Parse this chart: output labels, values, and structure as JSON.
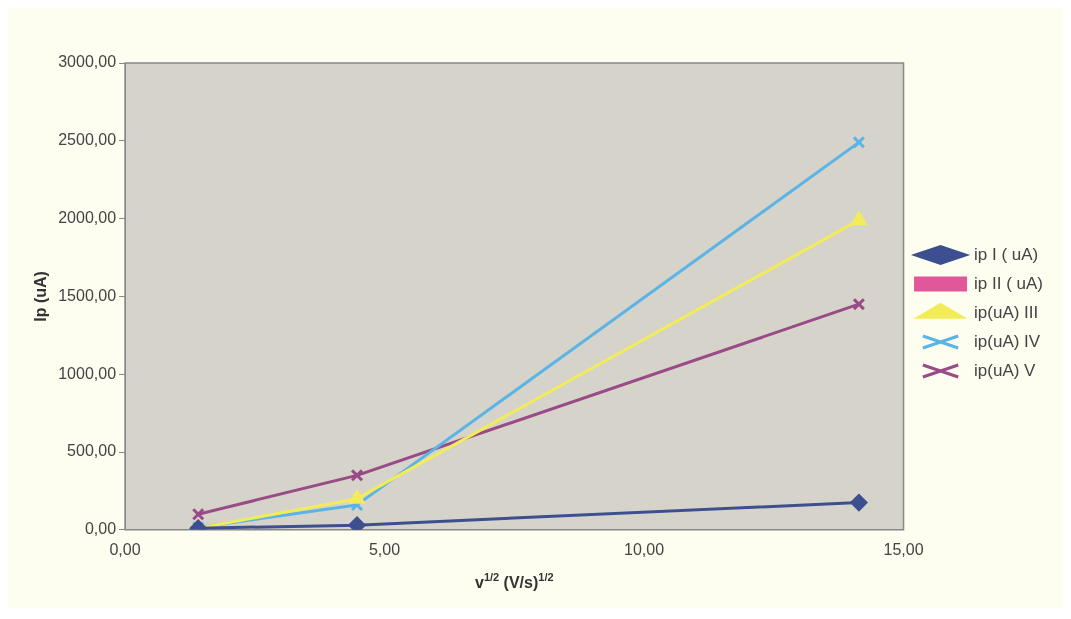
{
  "chart_data": {
    "type": "line",
    "xlabel": "v$^{1/2}$ (V/s)$^{1/2}$",
    "ylabel": "Ip (uA)",
    "x": [
      1.41,
      4.47,
      14.14
    ],
    "series": [
      {
        "name": "ip I ( uA)",
        "color": "#3d4f8f",
        "marker": "diamond",
        "values": [
          10,
          30,
          175
        ]
      },
      {
        "name": "ip II ( uA)",
        "color": "#e0589a",
        "marker": "square",
        "values": [
          null,
          null,
          null
        ]
      },
      {
        "name": "ip(uA) III",
        "color": "#f2ec5a",
        "marker": "triangle",
        "values": [
          10,
          200,
          1990
        ]
      },
      {
        "name": "ip(uA) IV",
        "color": "#5ab4e6",
        "marker": "cross",
        "values": [
          15,
          160,
          2490
        ]
      },
      {
        "name": "ip(uA) V",
        "color": "#9a4a86",
        "marker": "cross",
        "values": [
          100,
          350,
          1450
        ]
      }
    ],
    "xlim": [
      0,
      15
    ],
    "xticks": [
      {
        "value": 0,
        "label": "0,00"
      },
      {
        "value": 5,
        "label": "5,00"
      },
      {
        "value": 10,
        "label": "10,00"
      },
      {
        "value": 15,
        "label": "15,00"
      }
    ],
    "ylim": [
      0,
      3000
    ],
    "yticks": [
      {
        "value": 0,
        "label": "0,00"
      },
      {
        "value": 500,
        "label": "500,00"
      },
      {
        "value": 1000,
        "label": "1000,00"
      },
      {
        "value": 1500,
        "label": "1500,00"
      },
      {
        "value": 2000,
        "label": "2000,00"
      },
      {
        "value": 2500,
        "label": "2500,00"
      },
      {
        "value": 3000,
        "label": "3000,00"
      }
    ],
    "grid": false,
    "legend": "right",
    "line_style": "solid"
  }
}
